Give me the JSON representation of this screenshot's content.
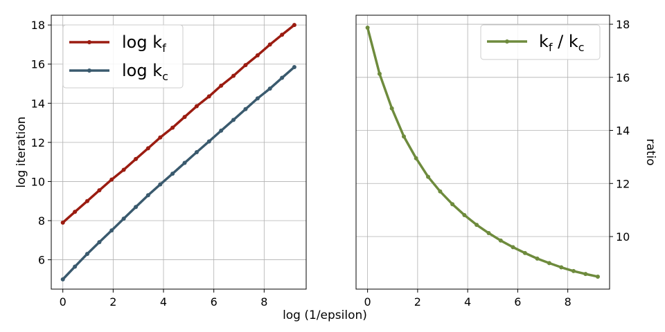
{
  "chart_data": [
    {
      "type": "line",
      "xlabel": "log (1/epsilon)",
      "ylabel": "log iteration",
      "xlim": [
        -0.46,
        9.67
      ],
      "ylim": [
        4.5,
        18.5
      ],
      "xticks": [
        0,
        2,
        4,
        6,
        8
      ],
      "yticks": [
        6,
        8,
        10,
        12,
        14,
        16,
        18
      ],
      "grid": true,
      "legend_position": "upper-left",
      "x": [
        0,
        0.48,
        0.97,
        1.45,
        1.94,
        2.42,
        2.9,
        3.39,
        3.87,
        4.36,
        4.84,
        5.32,
        5.81,
        6.29,
        6.78,
        7.26,
        7.74,
        8.23,
        8.71,
        9.2
      ],
      "series": [
        {
          "name": "log k_f",
          "label_main": "log k",
          "label_sub": "f",
          "color": "#9b1c11",
          "values": [
            7.9,
            8.45,
            9.0,
            9.55,
            10.1,
            10.6,
            11.15,
            11.7,
            12.25,
            12.75,
            13.3,
            13.85,
            14.35,
            14.9,
            15.4,
            15.95,
            16.45,
            17.0,
            17.5,
            18.0
          ]
        },
        {
          "name": "log k_c",
          "label_main": "log k",
          "label_sub": "c",
          "color": "#3a5a6e",
          "values": [
            5.0,
            5.65,
            6.3,
            6.9,
            7.5,
            8.1,
            8.7,
            9.3,
            9.85,
            10.4,
            10.95,
            11.5,
            12.05,
            12.6,
            13.15,
            13.7,
            14.25,
            14.75,
            15.3,
            15.85
          ]
        }
      ]
    },
    {
      "type": "line",
      "xlabel": "",
      "ylabel": "ratio",
      "xlim": [
        -0.46,
        9.67
      ],
      "ylim": [
        8.02,
        18.34
      ],
      "xticks": [
        0,
        2,
        4,
        6,
        8
      ],
      "yticks": [
        10,
        12,
        14,
        16,
        18
      ],
      "grid": true,
      "legend_position": "upper-right",
      "x": [
        0,
        0.48,
        0.97,
        1.45,
        1.94,
        2.42,
        2.9,
        3.39,
        3.87,
        4.36,
        4.84,
        5.32,
        5.81,
        6.29,
        6.78,
        7.26,
        7.74,
        8.23,
        8.71,
        9.2
      ],
      "series": [
        {
          "name": "k_f / k_c",
          "label_main": "k",
          "label_sub": "f",
          "label_mid": " / k",
          "label_sub2": "c",
          "color": "#6e8b3d",
          "values": [
            17.87,
            16.13,
            14.83,
            13.77,
            12.95,
            12.25,
            11.7,
            11.22,
            10.81,
            10.44,
            10.13,
            9.85,
            9.6,
            9.38,
            9.17,
            9.0,
            8.84,
            8.7,
            8.59,
            8.49
          ]
        }
      ]
    }
  ]
}
